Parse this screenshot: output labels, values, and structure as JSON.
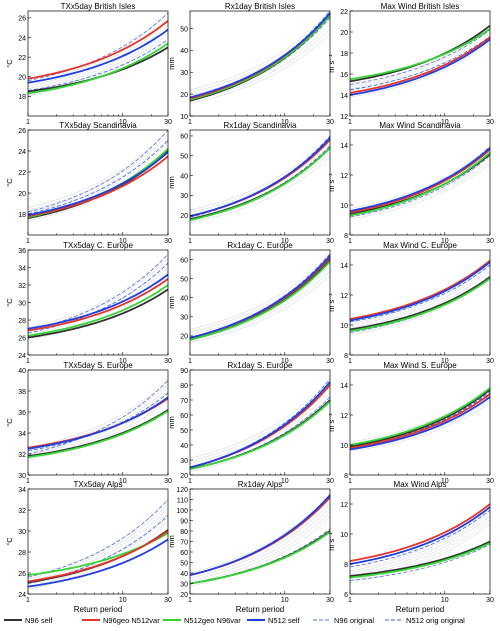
{
  "figure": {
    "x_axis_label": "Return period",
    "colors": {
      "n96_self": "#333333",
      "n96geo_n512var": "#e8332a",
      "n512geo_n96var": "#33d633",
      "n512_self": "#1f3fe0",
      "n96_original": "#5a6fd8",
      "n512_orig_original": "#3a63e0",
      "envelope": "#b8bdc8"
    }
  },
  "legend": [
    {
      "label": "N96 self",
      "key": "n96_self",
      "style": "solid"
    },
    {
      "label": "N96geo N512var",
      "key": "n96geo_n512var",
      "style": "solid"
    },
    {
      "label": "N512geo N96var",
      "key": "n512geo_n96var",
      "style": "solid"
    },
    {
      "label": "N512 self",
      "key": "n512_self",
      "style": "solid"
    },
    {
      "label": "N96 original",
      "key": "n96_original",
      "style": "dashed"
    },
    {
      "label": "N512 orig original",
      "key": "n512_orig_original",
      "style": "dashed"
    }
  ],
  "chart_data": [
    {
      "type": "line",
      "title": "TXx5day British Isles",
      "ylabel": "°C",
      "xscale": "log",
      "xlim": [
        1,
        30
      ],
      "xticks": [
        1,
        10,
        30
      ],
      "ylim": [
        16,
        26.7
      ],
      "yticks": [
        18,
        20,
        22,
        24,
        26
      ],
      "series": {
        "n96_self": [
          18.5,
          23.0
        ],
        "n96geo_n512var": [
          19.8,
          25.7
        ],
        "n512geo_n96var": [
          18.3,
          23.4
        ],
        "n512_self": [
          19.4,
          24.8
        ],
        "n96_original": [
          19.6,
          26.5
        ],
        "n512_orig_original": [
          18.6,
          23.8
        ]
      }
    },
    {
      "type": "line",
      "title": "Rx1day British Isles",
      "ylabel": "mm",
      "xscale": "log",
      "xlim": [
        1,
        30
      ],
      "xticks": [
        1,
        10,
        30
      ],
      "ylim": [
        10,
        58
      ],
      "yticks": [
        10,
        20,
        30,
        40,
        50
      ],
      "series": {
        "n96_self": [
          17,
          56
        ],
        "n96geo_n512var": [
          18,
          57
        ],
        "n512geo_n96var": [
          17.5,
          56
        ],
        "n512_self": [
          18.5,
          57
        ],
        "n96_original": [
          17,
          55
        ],
        "n512_orig_original": [
          18,
          58
        ]
      }
    },
    {
      "type": "line",
      "title": "Max Wind British Isles",
      "ylabel": "m s⁻¹",
      "xscale": "log",
      "xlim": [
        1,
        30
      ],
      "xticks": [
        1,
        10,
        30
      ],
      "ylim": [
        12,
        22
      ],
      "yticks": [
        12,
        14,
        16,
        18,
        20,
        22
      ],
      "series": {
        "n96_self": [
          15.3,
          20.6
        ],
        "n96geo_n512var": [
          14.2,
          19.5
        ],
        "n512geo_n96var": [
          15.5,
          20.3
        ],
        "n512_self": [
          14.0,
          19.3
        ],
        "n96_original": [
          15.0,
          20.2
        ],
        "n512_orig_original": [
          14.5,
          19.6
        ]
      }
    },
    {
      "type": "line",
      "title": "TXx5day Scandinavia",
      "ylabel": "°C",
      "xscale": "log",
      "xlim": [
        1,
        30
      ],
      "xticks": [
        1,
        10,
        30
      ],
      "ylim": [
        16,
        26
      ],
      "yticks": [
        18,
        20,
        22,
        24,
        26
      ],
      "series": {
        "n96_self": [
          17.6,
          24.0
        ],
        "n96geo_n512var": [
          17.8,
          23.5
        ],
        "n512geo_n96var": [
          17.7,
          24.2
        ],
        "n512_self": [
          17.9,
          23.9
        ],
        "n96_original": [
          18.2,
          26.0
        ],
        "n512_orig_original": [
          18.0,
          25.0
        ]
      }
    },
    {
      "type": "line",
      "title": "Rx1day Scandinavia",
      "ylabel": "mm",
      "xscale": "log",
      "xlim": [
        1,
        30
      ],
      "xticks": [
        1,
        10,
        30
      ],
      "ylim": [
        10,
        63
      ],
      "yticks": [
        20,
        30,
        40,
        50,
        60
      ],
      "series": {
        "n96_self": [
          18,
          54
        ],
        "n96geo_n512var": [
          19.5,
          58
        ],
        "n512geo_n96var": [
          17.5,
          54
        ],
        "n512_self": [
          19.5,
          59
        ],
        "n96_original": [
          18,
          55
        ],
        "n512_orig_original": [
          19,
          60
        ]
      }
    },
    {
      "type": "line",
      "title": "Max Wind Scandinavia",
      "ylabel": "m s⁻¹",
      "xscale": "log",
      "xlim": [
        1,
        30
      ],
      "xticks": [
        1,
        10,
        30
      ],
      "ylim": [
        8,
        15
      ],
      "yticks": [
        8,
        10,
        12,
        14
      ],
      "series": {
        "n96_self": [
          9.4,
          13.4
        ],
        "n96geo_n512var": [
          9.5,
          13.7
        ],
        "n512geo_n96var": [
          9.3,
          13.5
        ],
        "n512_self": [
          9.6,
          13.8
        ],
        "n96_original": [
          9.2,
          13.3
        ],
        "n512_orig_original": [
          9.5,
          13.9
        ]
      }
    },
    {
      "type": "line",
      "title": "TXx5day C. Europe",
      "ylabel": "°C",
      "xscale": "log",
      "xlim": [
        1,
        30
      ],
      "xticks": [
        1,
        10,
        30
      ],
      "ylim": [
        24,
        36
      ],
      "yticks": [
        24,
        26,
        28,
        30,
        32,
        34,
        36
      ],
      "series": {
        "n96_self": [
          26.0,
          31.5
        ],
        "n96geo_n512var": [
          26.8,
          32.7
        ],
        "n512geo_n96var": [
          26.2,
          32.0
        ],
        "n512_self": [
          27.0,
          33.2
        ],
        "n96_original": [
          26.8,
          35.5
        ],
        "n512_orig_original": [
          26.5,
          34.5
        ]
      }
    },
    {
      "type": "line",
      "title": "Rx1day C. Europe",
      "ylabel": "mm",
      "xscale": "log",
      "xlim": [
        1,
        30
      ],
      "xticks": [
        1,
        10,
        30
      ],
      "ylim": [
        10,
        65
      ],
      "yticks": [
        20,
        30,
        40,
        50,
        60
      ],
      "series": {
        "n96_self": [
          18,
          60
        ],
        "n96geo_n512var": [
          19,
          61
        ],
        "n512geo_n96var": [
          18,
          59
        ],
        "n512_self": [
          19,
          62
        ],
        "n96_original": [
          18,
          60
        ],
        "n512_orig_original": [
          19,
          63
        ]
      }
    },
    {
      "type": "line",
      "title": "Max Wind C. Europe",
      "ylabel": "m s⁻¹",
      "xscale": "log",
      "xlim": [
        1,
        30
      ],
      "xticks": [
        1,
        10,
        30
      ],
      "ylim": [
        8,
        15
      ],
      "yticks": [
        8,
        10,
        12,
        14
      ],
      "series": {
        "n96_self": [
          9.7,
          13.2
        ],
        "n96geo_n512var": [
          10.4,
          14.3
        ],
        "n512geo_n96var": [
          9.6,
          13.1
        ],
        "n512_self": [
          10.3,
          14.2
        ],
        "n96_original": [
          9.5,
          13.2
        ],
        "n512_orig_original": [
          10.2,
          14.0
        ]
      }
    },
    {
      "type": "line",
      "title": "TXx5day S. Europe",
      "ylabel": "°C",
      "xscale": "log",
      "xlim": [
        1,
        30
      ],
      "xticks": [
        1,
        10,
        30
      ],
      "ylim": [
        30,
        40
      ],
      "yticks": [
        30,
        32,
        34,
        36,
        38,
        40
      ],
      "series": {
        "n96_self": [
          31.8,
          36.2
        ],
        "n96geo_n512var": [
          32.6,
          37.3
        ],
        "n512geo_n96var": [
          31.7,
          36.1
        ],
        "n512_self": [
          32.5,
          37.4
        ],
        "n96_original": [
          32.0,
          39.0
        ],
        "n512_orig_original": [
          32.3,
          37.8
        ]
      }
    },
    {
      "type": "line",
      "title": "Rx1day S. Europe",
      "ylabel": "mm",
      "xscale": "log",
      "xlim": [
        1,
        30
      ],
      "xticks": [
        1,
        10,
        30
      ],
      "ylim": [
        20,
        90
      ],
      "yticks": [
        20,
        30,
        40,
        50,
        60,
        70,
        80,
        90
      ],
      "series": {
        "n96_self": [
          24,
          70
        ],
        "n96geo_n512var": [
          25,
          80
        ],
        "n512geo_n96var": [
          24,
          69
        ],
        "n512_self": [
          25,
          82
        ],
        "n96_original": [
          24,
          72
        ],
        "n512_orig_original": [
          25,
          84
        ]
      }
    },
    {
      "type": "line",
      "title": "Max Wind S. Europe",
      "ylabel": "m s⁻¹",
      "xscale": "log",
      "xlim": [
        1,
        30
      ],
      "xticks": [
        1,
        10,
        30
      ],
      "ylim": [
        8,
        15
      ],
      "yticks": [
        8,
        10,
        12,
        14
      ],
      "series": {
        "n96_self": [
          9.9,
          13.7
        ],
        "n96geo_n512var": [
          9.8,
          13.4
        ],
        "n512geo_n96var": [
          10.0,
          13.8
        ],
        "n512_self": [
          9.7,
          13.2
        ],
        "n96_original": [
          9.8,
          13.6
        ],
        "n512_orig_original": [
          9.9,
          13.5
        ]
      }
    },
    {
      "type": "line",
      "title": "TXx5day Alps",
      "ylabel": "°C",
      "xscale": "log",
      "xlim": [
        1,
        30
      ],
      "xticks": [
        1,
        10,
        30
      ],
      "ylim": [
        24,
        34
      ],
      "yticks": [
        24,
        26,
        28,
        30,
        32,
        34
      ],
      "series": {
        "n96_self": [
          25.1,
          30.1
        ],
        "n96geo_n512var": [
          25.2,
          30.0
        ],
        "n512geo_n96var": [
          25.8,
          29.8
        ],
        "n512_self": [
          24.7,
          29.2
        ],
        "n96_original": [
          25.6,
          33.0
        ],
        "n512_orig_original": [
          25.0,
          31.5
        ]
      }
    },
    {
      "type": "line",
      "title": "Rx1day Alps",
      "ylabel": "mm",
      "xscale": "log",
      "xlim": [
        1,
        30
      ],
      "xticks": [
        1,
        10,
        30
      ],
      "ylim": [
        20,
        120
      ],
      "yticks": [
        20,
        30,
        40,
        50,
        60,
        70,
        80,
        90,
        100,
        110,
        120
      ],
      "series": {
        "n96_self": [
          30,
          80
        ],
        "n96geo_n512var": [
          38,
          112
        ],
        "n512geo_n96var": [
          30,
          79
        ],
        "n512_self": [
          38,
          114
        ],
        "n96_original": [
          30,
          82
        ],
        "n512_orig_original": [
          38,
          115
        ]
      }
    },
    {
      "type": "line",
      "title": "Max Wind Alps",
      "ylabel": "m s⁻¹",
      "xscale": "log",
      "xlim": [
        1,
        30
      ],
      "xticks": [
        1,
        10,
        30
      ],
      "ylim": [
        6,
        13
      ],
      "yticks": [
        6,
        8,
        10,
        12
      ],
      "series": {
        "n96_self": [
          7.2,
          9.5
        ],
        "n96geo_n512var": [
          8.2,
          12.0
        ],
        "n512geo_n96var": [
          7.1,
          9.4
        ],
        "n512_self": [
          8.0,
          11.8
        ],
        "n96_original": [
          6.9,
          9.3
        ],
        "n512_orig_original": [
          7.8,
          11.6
        ]
      }
    }
  ]
}
